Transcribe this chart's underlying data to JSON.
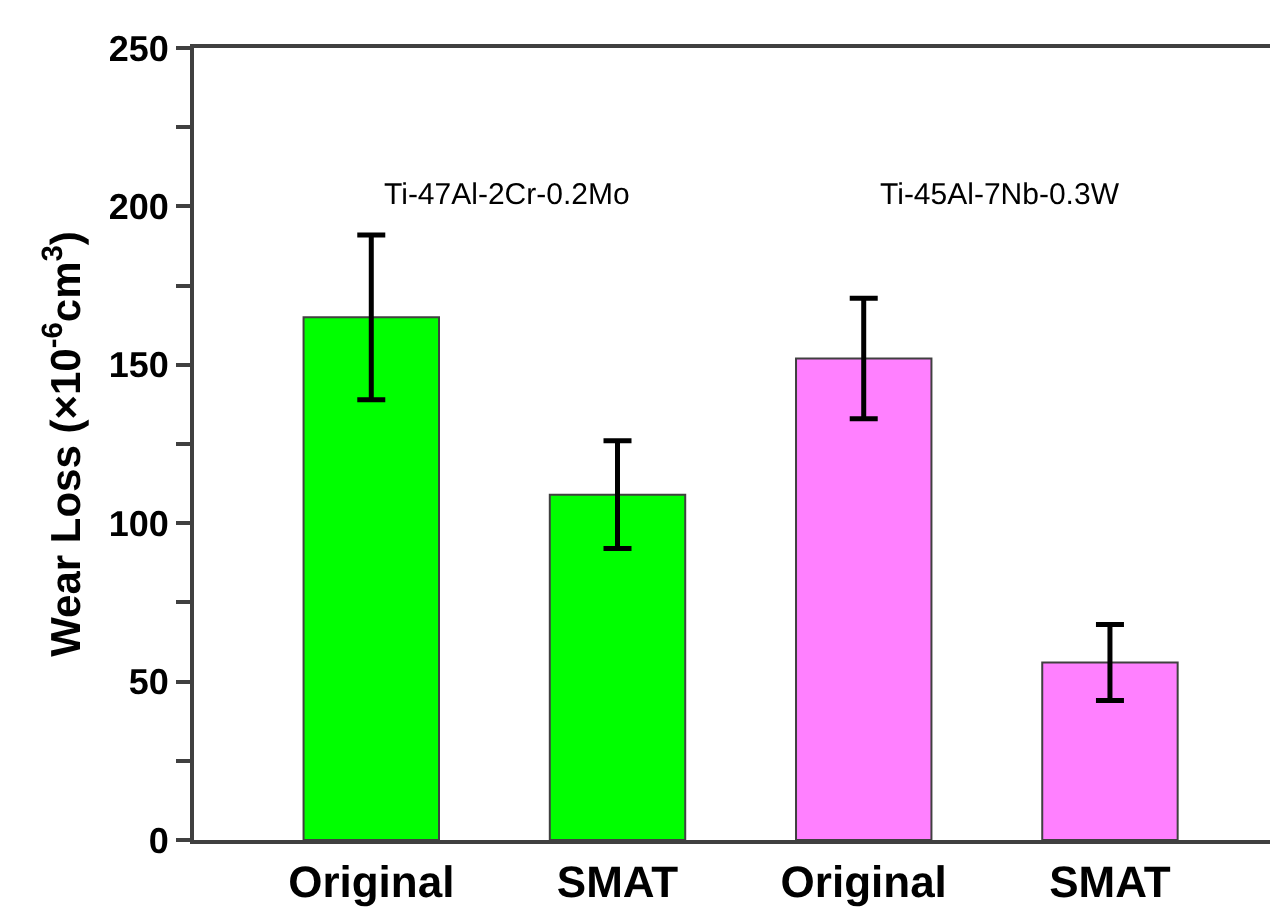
{
  "chart_data": {
    "type": "bar",
    "ylabel": "Wear Loss (×10$^{-6}$cm$^{3}$)",
    "categories": [
      "Original",
      "SMAT",
      "Original",
      "SMAT"
    ],
    "values": [
      165,
      109,
      152,
      56
    ],
    "colors": [
      "#00ff00",
      "#00ff00",
      "#ff80ff",
      "#ff80ff"
    ],
    "errors": [
      [
        139,
        191
      ],
      [
        92,
        126
      ],
      [
        133,
        171
      ],
      [
        44,
        68
      ]
    ],
    "ylim": [
      0,
      250
    ],
    "yticks": [
      0,
      {
        "value": 25,
        "label": null
      },
      50,
      {
        "value": 75,
        "label": null
      },
      100,
      {
        "value": 125,
        "label": null
      },
      150,
      {
        "value": 175,
        "label": null
      },
      200,
      {
        "value": 225,
        "label": null
      },
      250
    ],
    "annotations": [
      "Ti-47Al-2Cr-0.2Mo",
      "Ti-45Al-7Nb-0.3W"
    ]
  }
}
